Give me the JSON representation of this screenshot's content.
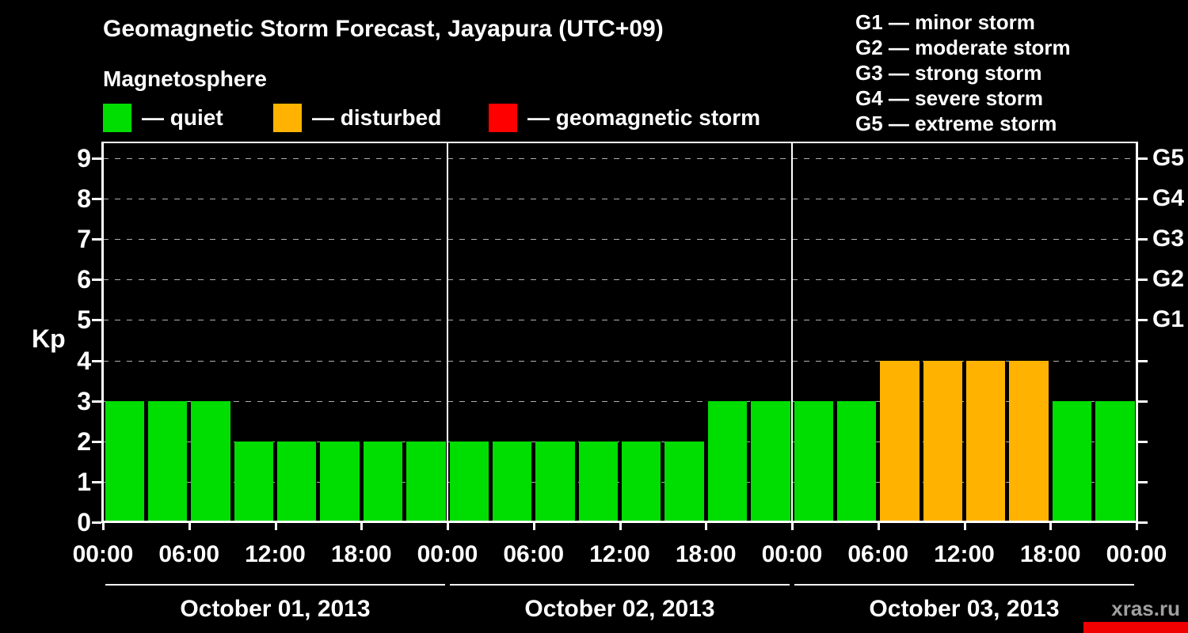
{
  "title": "Geomagnetic Storm Forecast, Jayapura (UTC+09)",
  "subtitle": "Magnetosphere",
  "kp_legend": {
    "items": [
      {
        "name": "quiet",
        "label": "— quiet",
        "color": "#00dd00"
      },
      {
        "name": "disturbed",
        "label": "— disturbed",
        "color": "#ffb300"
      },
      {
        "name": "storm",
        "label": "— geomagnetic storm",
        "color": "#ff0000"
      }
    ]
  },
  "g_legend": {
    "lines": [
      "G1 — minor storm",
      "G2 — moderate storm",
      "G3 — strong storm",
      "G4 — severe storm",
      "G5 — extreme storm"
    ]
  },
  "watermark": "xras.ru",
  "chart_data": {
    "type": "bar",
    "title": "Geomagnetic Storm Forecast, Jayapura (UTC+09)",
    "ylabel": "Kp",
    "ylim": [
      0,
      9.4
    ],
    "yticks": [
      0,
      1,
      2,
      3,
      4,
      5,
      6,
      7,
      8,
      9
    ],
    "right_axis": [
      {
        "label": "G1",
        "kp": 5
      },
      {
        "label": "G2",
        "kp": 6
      },
      {
        "label": "G3",
        "kp": 7
      },
      {
        "label": "G4",
        "kp": 8
      },
      {
        "label": "G5",
        "kp": 9
      }
    ],
    "x_tick_labels": [
      "00:00",
      "06:00",
      "12:00",
      "18:00",
      "00:00",
      "06:00",
      "12:00",
      "18:00",
      "00:00",
      "06:00",
      "12:00",
      "18:00",
      "00:00"
    ],
    "interval_hours": 3,
    "days": [
      {
        "date": "October 01, 2013",
        "values": [
          3,
          3,
          3,
          2,
          2,
          2,
          2,
          2
        ]
      },
      {
        "date": "October 02, 2013",
        "values": [
          2,
          2,
          2,
          2,
          2,
          2,
          3,
          3
        ]
      },
      {
        "date": "October 03, 2013",
        "values": [
          3,
          3,
          4,
          4,
          4,
          4,
          3,
          3
        ]
      }
    ],
    "colors": {
      "quiet": "#00dd00",
      "disturbed": "#ffb300",
      "storm": "#ff0000"
    },
    "color_thresholds": {
      "disturbed_min": 4,
      "storm_min": 5
    },
    "grid": "dashed horizontal line at each Kp level",
    "legend_position": "top-left and top-right"
  }
}
